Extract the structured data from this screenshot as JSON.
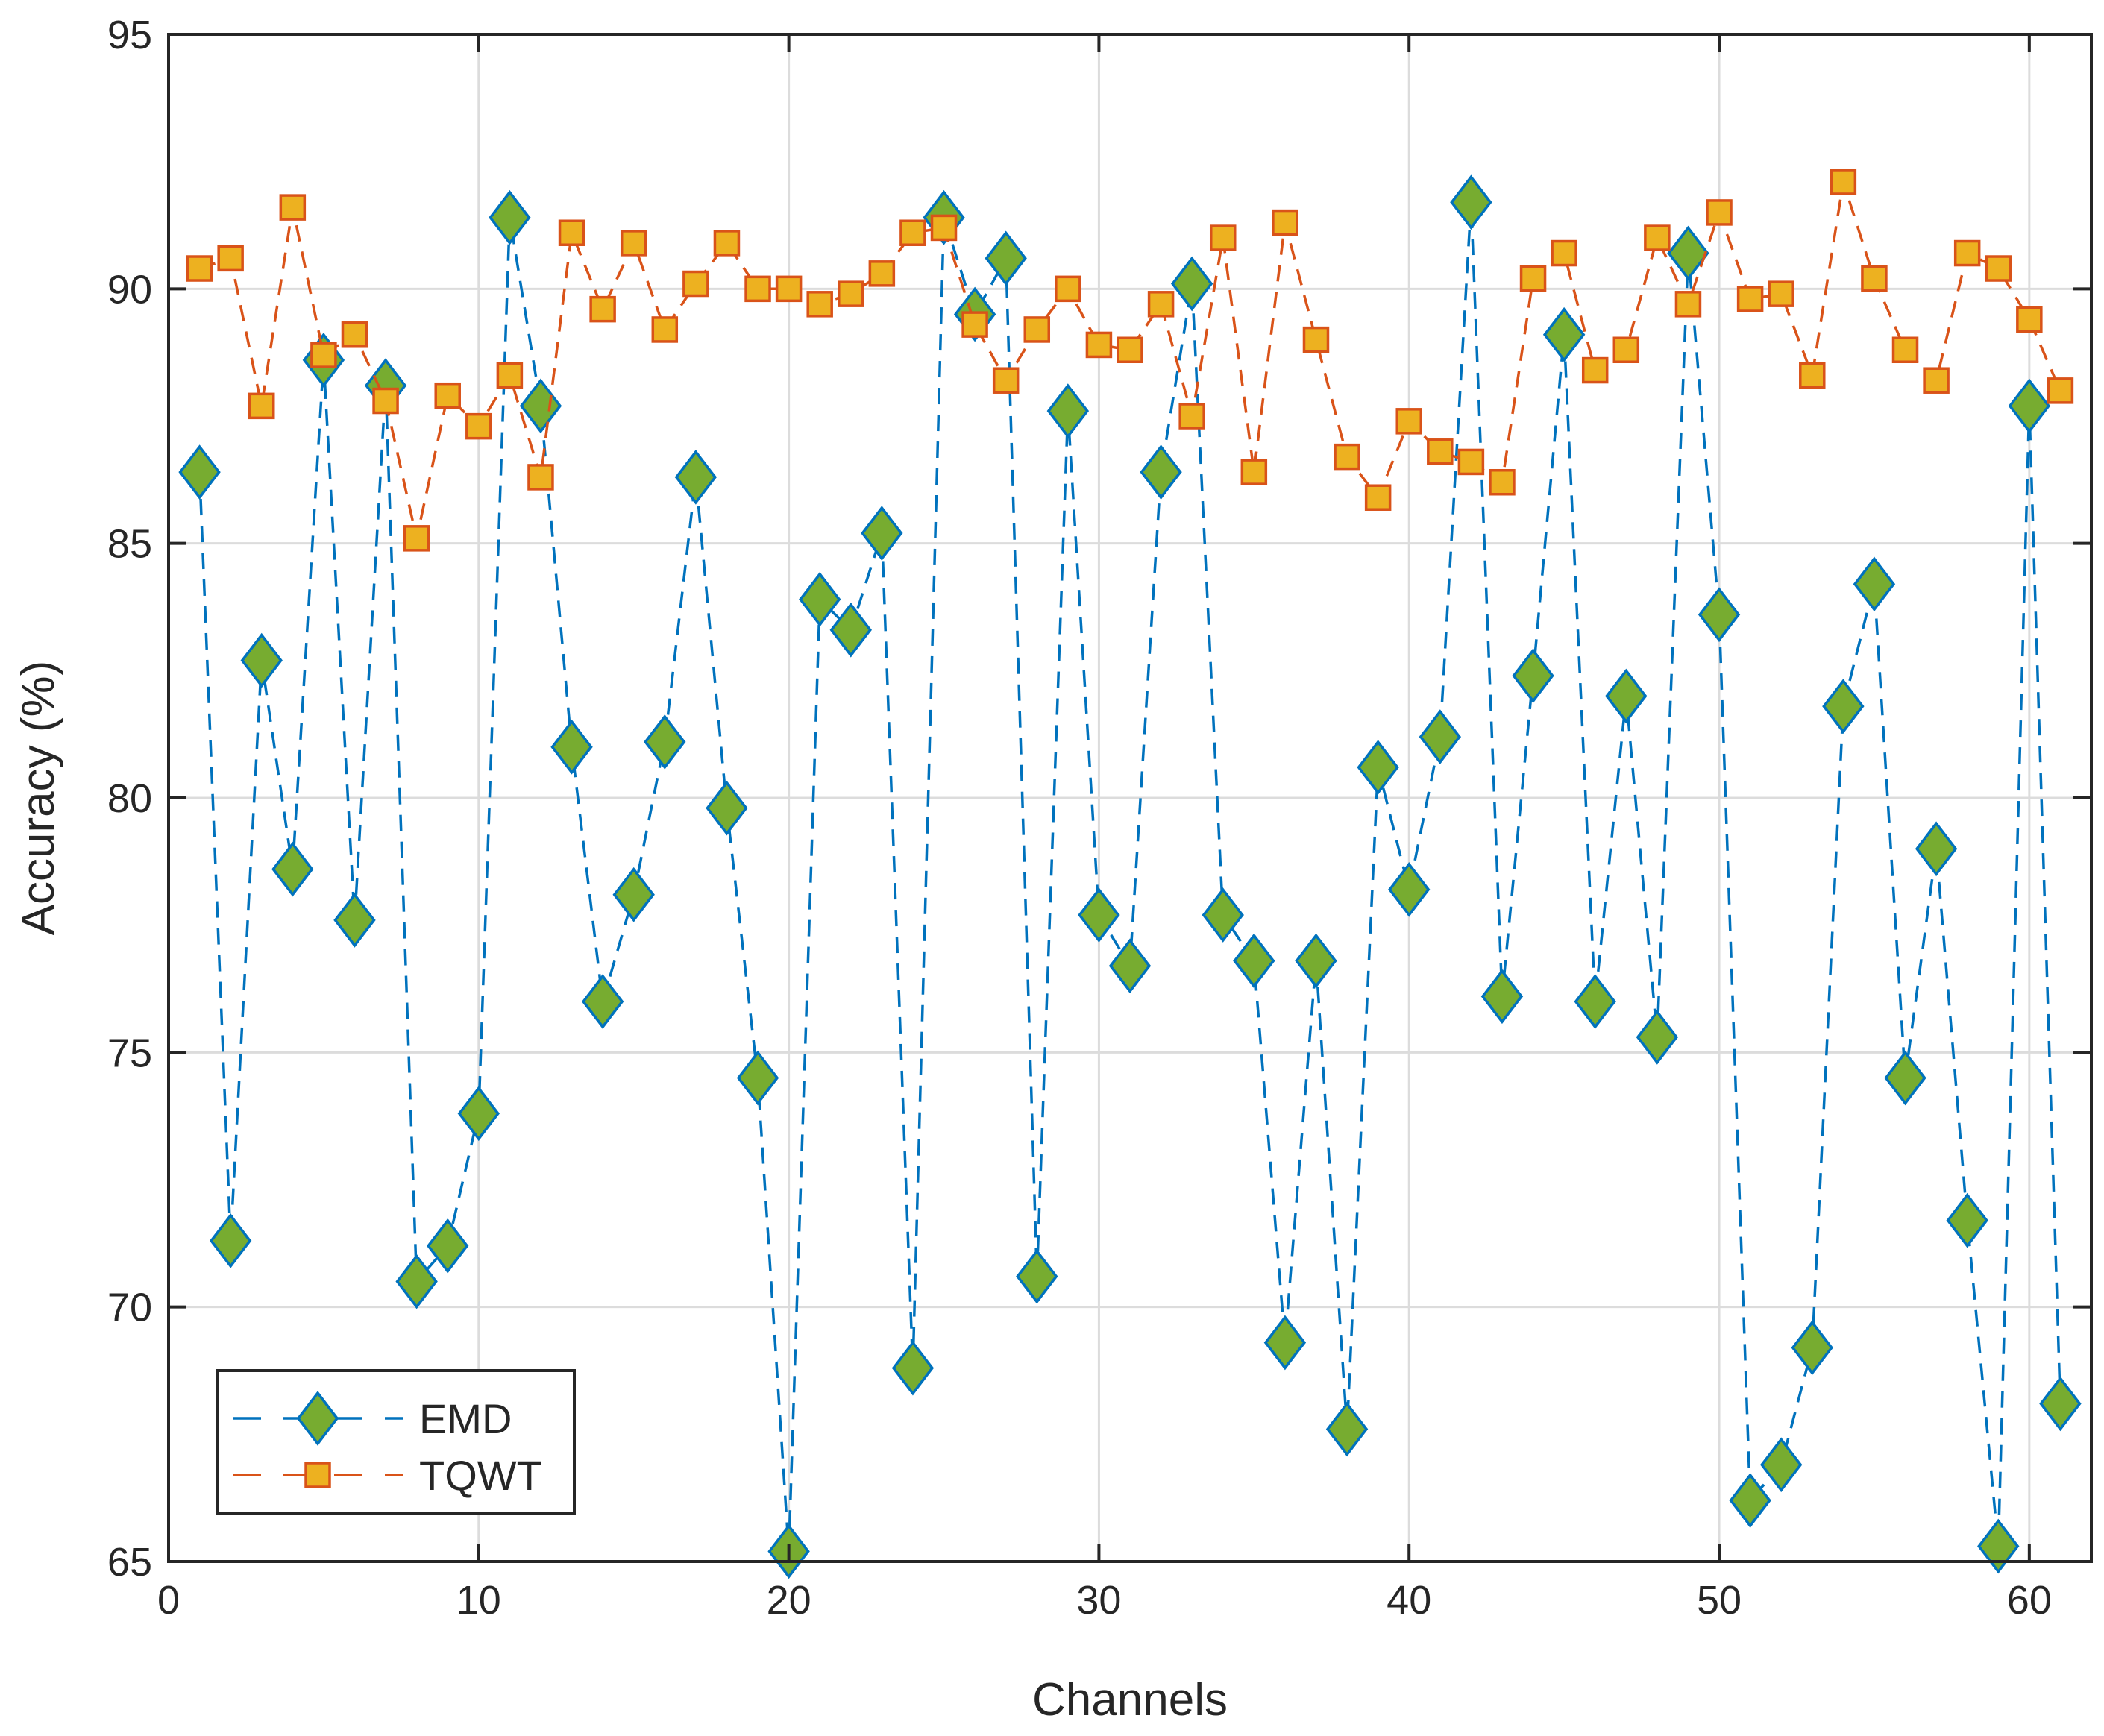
{
  "chart_data": {
    "type": "line",
    "title": "",
    "xlabel": "Channels",
    "ylabel": "Accuracy (%)",
    "xlim": [
      0,
      62
    ],
    "ylim": [
      65,
      95
    ],
    "xticks": [
      0,
      10,
      20,
      30,
      40,
      50,
      60
    ],
    "yticks": [
      65,
      70,
      75,
      80,
      85,
      90,
      95
    ],
    "grid": true,
    "legend_position": "bottom-left",
    "x": [
      1,
      2,
      3,
      4,
      5,
      6,
      7,
      8,
      9,
      10,
      11,
      12,
      13,
      14,
      15,
      16,
      17,
      18,
      19,
      20,
      21,
      22,
      23,
      24,
      25,
      26,
      27,
      28,
      29,
      30,
      31,
      32,
      33,
      34,
      35,
      36,
      37,
      38,
      39,
      40,
      41,
      42,
      43,
      44,
      45,
      46,
      47,
      48,
      49,
      50,
      51,
      52,
      53,
      54,
      55,
      56,
      57,
      58,
      59,
      60,
      61
    ],
    "series": [
      {
        "name": "EMD",
        "line_color": "#0072BD",
        "marker": "diamond",
        "marker_face": "#77AC30",
        "values": [
          86.4,
          71.3,
          82.7,
          78.6,
          88.6,
          77.6,
          88.1,
          70.5,
          71.2,
          73.8,
          91.4,
          87.7,
          81.0,
          76.0,
          78.1,
          81.1,
          86.3,
          79.8,
          74.5,
          65.2,
          83.9,
          83.3,
          85.2,
          68.8,
          91.4,
          89.5,
          90.6,
          70.6,
          87.6,
          77.7,
          76.7,
          86.4,
          90.1,
          77.7,
          76.8,
          69.3,
          76.8,
          67.6,
          80.6,
          78.2,
          81.2,
          91.7,
          76.1,
          82.4,
          89.1,
          76.0,
          82.0,
          75.3,
          90.7,
          83.6,
          66.2,
          66.9,
          69.2,
          81.8,
          84.2,
          74.5,
          79.0,
          71.7,
          65.3,
          87.7,
          68.1
        ]
      },
      {
        "name": "TQWT",
        "line_color": "#D95319",
        "marker": "square",
        "marker_face": "#EDB120",
        "values": [
          90.4,
          90.6,
          87.7,
          91.6,
          88.7,
          89.1,
          87.8,
          85.1,
          87.9,
          87.3,
          88.3,
          86.3,
          91.1,
          89.6,
          90.9,
          89.2,
          90.1,
          90.9,
          90.0,
          90.0,
          89.7,
          89.9,
          90.3,
          91.1,
          91.2,
          89.3,
          88.2,
          89.2,
          90.0,
          88.9,
          88.8,
          89.7,
          87.5,
          91.0,
          86.4,
          91.3,
          89.0,
          86.7,
          85.9,
          87.4,
          86.8,
          86.6,
          86.2,
          90.2,
          90.7,
          88.4,
          88.8,
          91.0,
          89.7,
          91.5,
          89.8,
          89.9,
          88.3,
          92.1,
          90.2,
          88.8,
          88.2,
          90.7,
          90.4,
          89.4,
          88.0
        ]
      }
    ]
  }
}
